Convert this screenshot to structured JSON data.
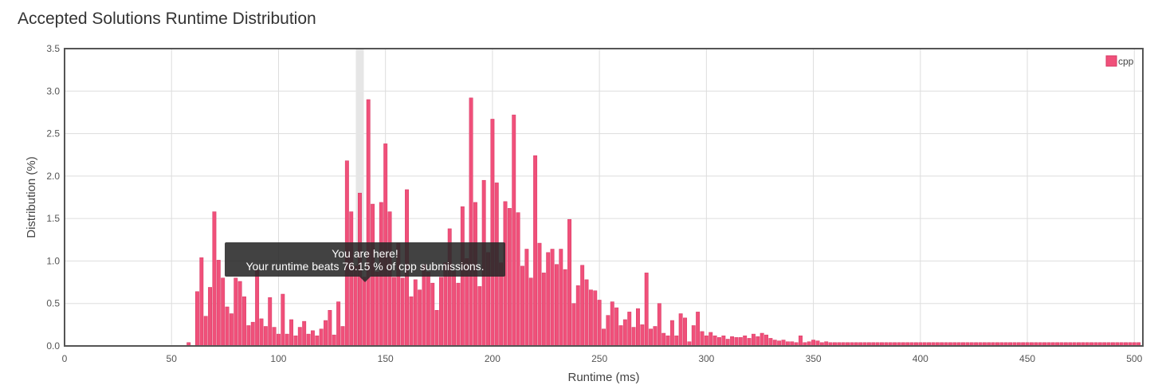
{
  "page": {
    "title": "Accepted Solutions Runtime Distribution"
  },
  "tooltip": {
    "line1": "You are here!",
    "line2": "Your runtime beats 76.15 % of cpp submissions."
  },
  "colors": {
    "bar": "#f0507a",
    "bar_stroke": "#d63a64",
    "highlight": "#e6e6e6",
    "grid": "#dddddd"
  },
  "chart_data": {
    "type": "bar",
    "xlabel": "Runtime (ms)",
    "ylabel": "Distribution (%)",
    "xlim": [
      0,
      504
    ],
    "ylim": [
      0,
      3.5
    ],
    "xticks": [
      0,
      50,
      100,
      150,
      200,
      250,
      300,
      350,
      400,
      450,
      500
    ],
    "yticks": [
      "0.0",
      "0.5",
      "1.0",
      "1.5",
      "2.0",
      "2.5",
      "3.0",
      "3.5"
    ],
    "grid": true,
    "legend": {
      "position": "top-right",
      "entries": [
        "cpp"
      ]
    },
    "highlight_runtime": 138,
    "series": [
      {
        "name": "cpp",
        "x": [
          58,
          62,
          64,
          66,
          68,
          70,
          72,
          74,
          76,
          78,
          80,
          82,
          84,
          86,
          88,
          90,
          92,
          94,
          96,
          98,
          100,
          102,
          104,
          106,
          108,
          110,
          112,
          114,
          116,
          118,
          120,
          122,
          124,
          126,
          128,
          130,
          132,
          134,
          136,
          138,
          140,
          142,
          144,
          146,
          148,
          150,
          152,
          154,
          156,
          158,
          160,
          162,
          164,
          166,
          168,
          170,
          172,
          174,
          176,
          178,
          180,
          182,
          184,
          186,
          188,
          190,
          192,
          194,
          196,
          198,
          200,
          202,
          204,
          206,
          208,
          210,
          212,
          214,
          216,
          218,
          220,
          222,
          224,
          226,
          228,
          230,
          232,
          234,
          236,
          238,
          240,
          242,
          244,
          246,
          248,
          250,
          252,
          254,
          256,
          258,
          260,
          262,
          264,
          266,
          268,
          270,
          272,
          274,
          276,
          278,
          280,
          282,
          284,
          286,
          288,
          290,
          292,
          294,
          296,
          298,
          300,
          302,
          304,
          306,
          308,
          310,
          312,
          314,
          316,
          318,
          320,
          322,
          324,
          326,
          328,
          330,
          332,
          334,
          336,
          338,
          340,
          342,
          344,
          346,
          348,
          350,
          352,
          354,
          356,
          358,
          360,
          362,
          364,
          366,
          368,
          370,
          372,
          374,
          376,
          378,
          380,
          382,
          384,
          386,
          388,
          390,
          392,
          394,
          396,
          398,
          400,
          402,
          404,
          406,
          408,
          410,
          412,
          414,
          416,
          418,
          420,
          422,
          424,
          426,
          428,
          430,
          432,
          434,
          436,
          438,
          440,
          442,
          444,
          446,
          448,
          450,
          452,
          454,
          456,
          458,
          460,
          462,
          464,
          466,
          468,
          470,
          472,
          474,
          476,
          478,
          480,
          482,
          484,
          486,
          488,
          490,
          492,
          494,
          496,
          498,
          500,
          502
        ],
        "values": [
          0.04,
          0.64,
          1.04,
          0.35,
          0.69,
          1.58,
          1.01,
          0.8,
          0.46,
          0.38,
          0.8,
          0.76,
          0.58,
          0.24,
          0.28,
          0.89,
          0.32,
          0.23,
          0.57,
          0.22,
          0.14,
          0.61,
          0.14,
          0.31,
          0.12,
          0.22,
          0.29,
          0.14,
          0.18,
          0.12,
          0.2,
          0.3,
          0.42,
          0.13,
          0.52,
          0.23,
          2.18,
          1.58,
          0.94,
          1.8,
          0.81,
          2.9,
          1.67,
          0.87,
          1.69,
          2.38,
          1.58,
          0.81,
          1.21,
          0.8,
          1.84,
          0.58,
          0.78,
          0.66,
          0.96,
          0.87,
          0.74,
          0.42,
          0.81,
          0.98,
          1.38,
          0.88,
          0.74,
          1.64,
          1.03,
          2.92,
          1.69,
          0.7,
          1.95,
          1.1,
          2.67,
          1.92,
          0.98,
          1.7,
          1.62,
          2.72,
          1.57,
          0.94,
          1.14,
          0.8,
          2.24,
          1.21,
          0.86,
          1.1,
          1.14,
          0.96,
          1.14,
          0.9,
          1.49,
          0.5,
          0.71,
          0.95,
          0.78,
          0.66,
          0.65,
          0.54,
          0.2,
          0.36,
          0.52,
          0.45,
          0.24,
          0.31,
          0.4,
          0.22,
          0.44,
          0.25,
          0.86,
          0.2,
          0.23,
          0.5,
          0.15,
          0.12,
          0.3,
          0.12,
          0.38,
          0.33,
          0.05,
          0.24,
          0.4,
          0.17,
          0.12,
          0.16,
          0.12,
          0.1,
          0.12,
          0.08,
          0.11,
          0.1,
          0.1,
          0.12,
          0.09,
          0.14,
          0.11,
          0.15,
          0.13,
          0.09,
          0.07,
          0.06,
          0.07,
          0.05,
          0.05,
          0.04,
          0.12,
          0.04,
          0.05,
          0.07,
          0.06,
          0.04,
          0.05,
          0.04,
          0.04,
          0.04,
          0.04,
          0.04,
          0.04,
          0.04,
          0.04,
          0.04,
          0.04,
          0.04,
          0.04,
          0.04,
          0.04,
          0.04,
          0.04,
          0.04,
          0.04,
          0.04,
          0.04,
          0.04,
          0.04,
          0.04,
          0.04,
          0.04,
          0.04,
          0.04,
          0.04,
          0.04,
          0.04,
          0.04,
          0.04,
          0.04,
          0.04,
          0.04,
          0.04,
          0.04,
          0.04,
          0.04,
          0.04,
          0.04,
          0.04,
          0.04,
          0.04,
          0.04,
          0.04,
          0.04,
          0.04,
          0.04,
          0.04,
          0.04,
          0.04,
          0.04,
          0.04,
          0.04,
          0.04,
          0.04,
          0.04,
          0.04,
          0.04,
          0.04,
          0.04,
          0.04,
          0.04,
          0.04,
          0.04,
          0.04,
          0.04,
          0.04,
          0.04,
          0.04,
          0.04,
          0.04
        ]
      }
    ]
  }
}
